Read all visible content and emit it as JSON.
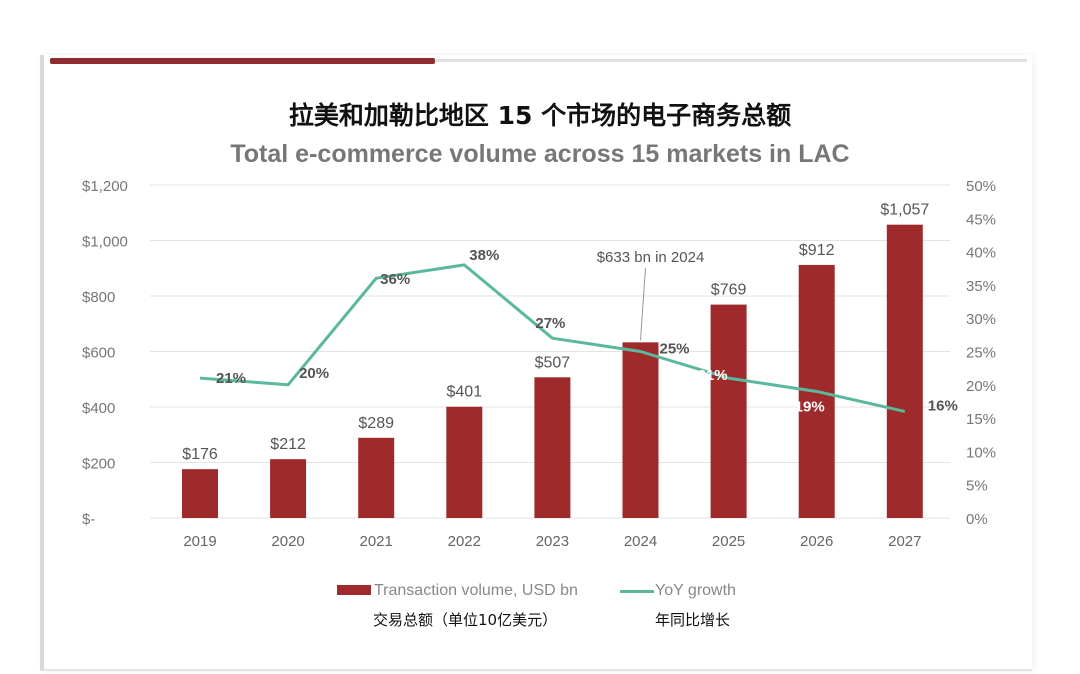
{
  "chart_data": {
    "type": "bar+line",
    "title": "拉美和加勒比地区 15 个市场的电子商务总额",
    "subtitle": "Total e-commerce volume across 15 markets in LAC",
    "categories": [
      "2019",
      "2020",
      "2021",
      "2022",
      "2023",
      "2024",
      "2025",
      "2026",
      "2027"
    ],
    "series": [
      {
        "name": "Transaction volume, USD bn",
        "name_cn": "交易总额（单位10亿美元）",
        "type": "bar",
        "axis": "left",
        "color": "#9e2a2b",
        "values": [
          176,
          212,
          289,
          401,
          507,
          633,
          769,
          912,
          1057
        ],
        "labels": [
          "$176",
          "$212",
          "$289",
          "$401",
          "$507",
          "",
          "$769",
          "$912",
          "$1,057"
        ]
      },
      {
        "name": "YoY growth",
        "name_cn": "年同比增长",
        "type": "line",
        "axis": "right",
        "color": "#5bb89e",
        "values": [
          21,
          20,
          36,
          38,
          27,
          25,
          21,
          19,
          16
        ],
        "labels": [
          "21%",
          "20%",
          "36%",
          "38%",
          "27%",
          "25%",
          "21%",
          "19%",
          "16%"
        ]
      }
    ],
    "left_axis": {
      "ylim": [
        0,
        1200
      ],
      "ticks": [
        "$-",
        "$200",
        "$400",
        "$600",
        "$800",
        "$1,000",
        "$1,200"
      ]
    },
    "right_axis": {
      "ylim": [
        0,
        50
      ],
      "ticks": [
        "0%",
        "5%",
        "10%",
        "15%",
        "20%",
        "25%",
        "30%",
        "35%",
        "40%",
        "45%",
        "50%"
      ]
    },
    "annotation": "$633 bn in 2024",
    "grid": true,
    "legend": "bottom"
  }
}
